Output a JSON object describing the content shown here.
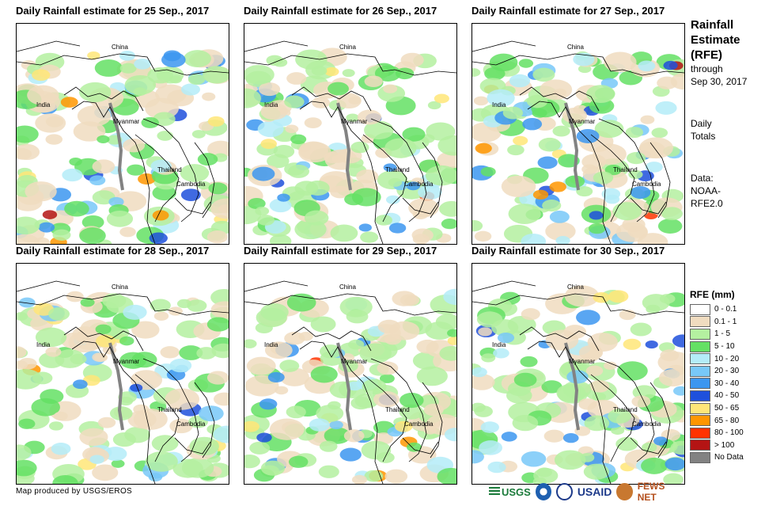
{
  "panels": [
    {
      "title": "Daily Rainfall estimate for 25 Sep., 2017",
      "labels": {
        "china": "China",
        "india": "India",
        "myanmar": "Myanmar",
        "thailand": "Thailand",
        "cambodia": "Cambodia"
      },
      "seed": 3
    },
    {
      "title": "Daily Rainfall estimate for 26 Sep., 2017",
      "labels": {
        "china": "China",
        "india": "India",
        "myanmar": "Myanmar",
        "thailand": "Thailand",
        "cambodia": "Cambodia"
      },
      "seed": 7
    },
    {
      "title": "Daily Rainfall estimate for 27 Sep., 2017",
      "labels": {
        "china": "China",
        "india": "India",
        "myanmar": "Myanmar",
        "thailand": "Thailand",
        "cambodia": "Cambodia"
      },
      "seed": 11
    },
    {
      "title": "Daily Rainfall estimate for 28 Sep., 2017",
      "labels": {
        "china": "China",
        "india": "India",
        "myanmar": "Myanmar",
        "thailand": "Thailand",
        "cambodia": "Cambodia"
      },
      "seed": 17
    },
    {
      "title": "Daily Rainfall estimate for 29 Sep., 2017",
      "labels": {
        "china": "China",
        "india": "India",
        "myanmar": "Myanmar",
        "thailand": "Thailand",
        "cambodia": "Cambodia"
      },
      "seed": 23
    },
    {
      "title": "Daily Rainfall estimate for 30 Sep., 2017",
      "labels": {
        "china": "China",
        "india": "India",
        "myanmar": "Myanmar",
        "thailand": "Thailand",
        "cambodia": "Cambodia"
      },
      "seed": 29
    }
  ],
  "side": {
    "title1": "Rainfall",
    "title2": "Estimate",
    "title3": "(RFE)",
    "through": "through",
    "date": "Sep 30, 2017",
    "daily1": "Daily",
    "daily2": "Totals",
    "data1": "Data:",
    "data2": "NOAA-",
    "data3": "RFE2.0"
  },
  "legend": {
    "title": "RFE (mm)",
    "items": [
      {
        "label": "0 - 0.1",
        "color": "#ffffff"
      },
      {
        "label": "0.1 - 1",
        "color": "#f0dcc0"
      },
      {
        "label": "1 - 5",
        "color": "#b4f0a0"
      },
      {
        "label": "5 - 10",
        "color": "#64e064"
      },
      {
        "label": "10 - 20",
        "color": "#b4ecf8"
      },
      {
        "label": "20 - 30",
        "color": "#78c8f8"
      },
      {
        "label": "30 - 40",
        "color": "#3c96f0"
      },
      {
        "label": "40 - 50",
        "color": "#1e50dc"
      },
      {
        "label": "50 - 65",
        "color": "#ffe678"
      },
      {
        "label": "65 - 80",
        "color": "#ff9600"
      },
      {
        "label": "80 - 100",
        "color": "#ff3200"
      },
      {
        "label": "> 100",
        "color": "#b41414"
      },
      {
        "label": "No Data",
        "color": "#828282"
      }
    ]
  },
  "footer": "Map produced by USGS/EROS",
  "logos": {
    "usgs": "USGS",
    "usaid": "USAID",
    "fewsnet": "FEWS NET"
  }
}
